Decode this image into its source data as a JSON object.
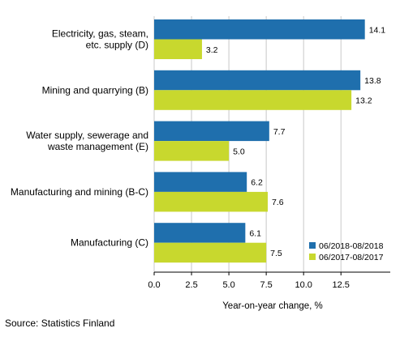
{
  "source": "Source: Statistics Finland",
  "colors": {
    "series_1": "#1f6fad",
    "series_2": "#c8d82e",
    "gridline": "#c8c8c8",
    "axis": "#000000"
  },
  "chart_data": {
    "type": "bar",
    "orientation": "horizontal",
    "categories": [
      [
        "Electricity, gas, steam,",
        "etc. supply (D)"
      ],
      [
        "Mining and quarrying (B)"
      ],
      [
        "Water supply, sewerage and",
        "waste management (E)"
      ],
      [
        "Manufacturing and mining (B-C)"
      ],
      [
        "Manufacturing (C)"
      ]
    ],
    "series": [
      {
        "name": "06/2018-08/2018",
        "color": "#1f6fad",
        "values": [
          14.1,
          13.8,
          7.7,
          6.2,
          6.1
        ],
        "labels": [
          "14.1",
          "13.8",
          "7.7",
          "6.2",
          "6.1"
        ]
      },
      {
        "name": "06/2017-08/2017",
        "color": "#c8d82e",
        "values": [
          3.2,
          13.2,
          5.0,
          7.6,
          7.5
        ],
        "labels": [
          "3.2",
          "13.2",
          "5.0",
          "7.6",
          "7.5"
        ]
      }
    ],
    "xlabel": "Year-on-year change, %",
    "xlim": [
      0,
      15.8
    ],
    "xticks": [
      0,
      2.5,
      5,
      7.5,
      10,
      12.5
    ],
    "xtick_labels": [
      "0.0",
      "2.5",
      "5.0",
      "7.5",
      "10.0",
      "12.5"
    ],
    "grid": "vertical",
    "legend_position": "bottom-right"
  }
}
